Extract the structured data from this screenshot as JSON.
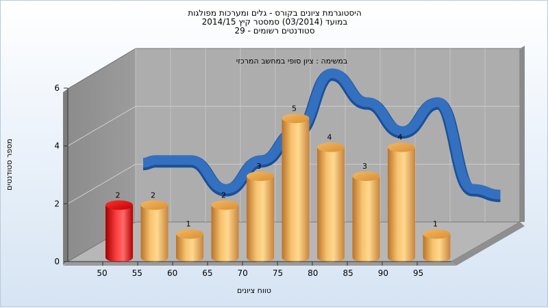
{
  "chart_data": {
    "type": "bar",
    "title_lines": [
      "היסטוגרמת ציונים בקורס - גלים ומערכות מפולגות",
      "במועד  (03/2014)  סמסטר קיץ 2014/15",
      "סטודנטים רשומים - 29"
    ],
    "subtitle": "במשימה : ציון סופי במחשב המרכזי",
    "xlabel": "טווח ציונים",
    "ylabel": "מספר סטודנטים",
    "x_tick_labels": [
      "50",
      "55",
      "60",
      "65",
      "70",
      "75",
      "80",
      "85",
      "90",
      "95"
    ],
    "y_tick_labels": [
      "0",
      "2",
      "4",
      "6"
    ],
    "ylim": [
      0,
      6
    ],
    "categories": [
      "50",
      "55",
      "60",
      "65",
      "70",
      "75",
      "80",
      "85",
      "90",
      "95"
    ],
    "values": [
      2,
      2,
      1,
      2,
      3,
      5,
      4,
      3,
      4,
      1
    ],
    "value_labels": [
      "2",
      "2",
      "1",
      "2",
      "3",
      "5",
      "4",
      "3",
      "4",
      "1"
    ],
    "highlight_index": 0,
    "trend_ribbon": true,
    "grid": true,
    "colors": {
      "bar": "#e8a84a",
      "bar_highlight": "#e82020",
      "ribbon": "#3370c0",
      "wall": "#a9a9a9",
      "floor": "#b4b4b4"
    }
  }
}
